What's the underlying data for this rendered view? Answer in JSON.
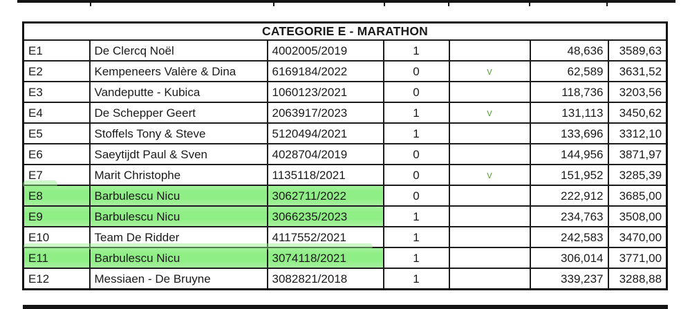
{
  "page": {
    "background": "#ffffff"
  },
  "table": {
    "title": "CATEGORIE E - MARATHON",
    "highlight_color": "#8fee85",
    "check_color": "#6aa84f",
    "check_mark": "v",
    "rows": [
      {
        "id": "E1",
        "name": "De Clercq Noël",
        "licence": "4002005/2019",
        "flag": "1",
        "check": "",
        "val1": "48,636",
        "val2": "3589,63",
        "highlight": false
      },
      {
        "id": "E2",
        "name": "Kempeneers Valère & Dina",
        "licence": "6169184/2022",
        "flag": "0",
        "check": "v",
        "val1": "62,589",
        "val2": "3631,52",
        "highlight": false
      },
      {
        "id": "E3",
        "name": "Vandeputte - Kubica",
        "licence": "1060123/2021",
        "flag": "0",
        "check": "",
        "val1": "118,736",
        "val2": "3203,56",
        "highlight": false
      },
      {
        "id": "E4",
        "name": "De Schepper Geert",
        "licence": "2063917/2023",
        "flag": "1",
        "check": "v",
        "val1": "131,113",
        "val2": "3450,62",
        "highlight": false
      },
      {
        "id": "E5",
        "name": "Stoffels Tony & Steve",
        "licence": "5120494/2021",
        "flag": "1",
        "check": "",
        "val1": "133,696",
        "val2": "3312,10",
        "highlight": false
      },
      {
        "id": "E6",
        "name": "Saeytijdt Paul & Sven",
        "licence": "4028704/2019",
        "flag": "0",
        "check": "",
        "val1": "144,956",
        "val2": "3871,97",
        "highlight": false
      },
      {
        "id": "E7",
        "name": "Marit Christophe",
        "licence": "1135118/2021",
        "flag": "0",
        "check": "v",
        "val1": "151,952",
        "val2": "3285,39",
        "highlight": false
      },
      {
        "id": "E8",
        "name": "Barbulescu Nicu",
        "licence": "3062711/2022",
        "flag": "0",
        "check": "",
        "val1": "222,912",
        "val2": "3685,00",
        "highlight": true
      },
      {
        "id": "E9",
        "name": "Barbulescu Nicu",
        "licence": "3066235/2023",
        "flag": "1",
        "check": "",
        "val1": "234,763",
        "val2": "3508,00",
        "highlight": true
      },
      {
        "id": "E10",
        "name": "Team De Ridder",
        "licence": "4117552/2021",
        "flag": "1",
        "check": "",
        "val1": "242,583",
        "val2": "3470,00",
        "highlight": false
      },
      {
        "id": "E11",
        "name": "Barbulescu Nicu",
        "licence": "3074118/2021",
        "flag": "1",
        "check": "",
        "val1": "306,014",
        "val2": "3771,00",
        "highlight": true
      },
      {
        "id": "E12",
        "name": "Messiaen - De Bruyne",
        "licence": "3082821/2018",
        "flag": "1",
        "check": "",
        "val1": "339,237",
        "val2": "3288,88",
        "highlight": false
      }
    ]
  }
}
